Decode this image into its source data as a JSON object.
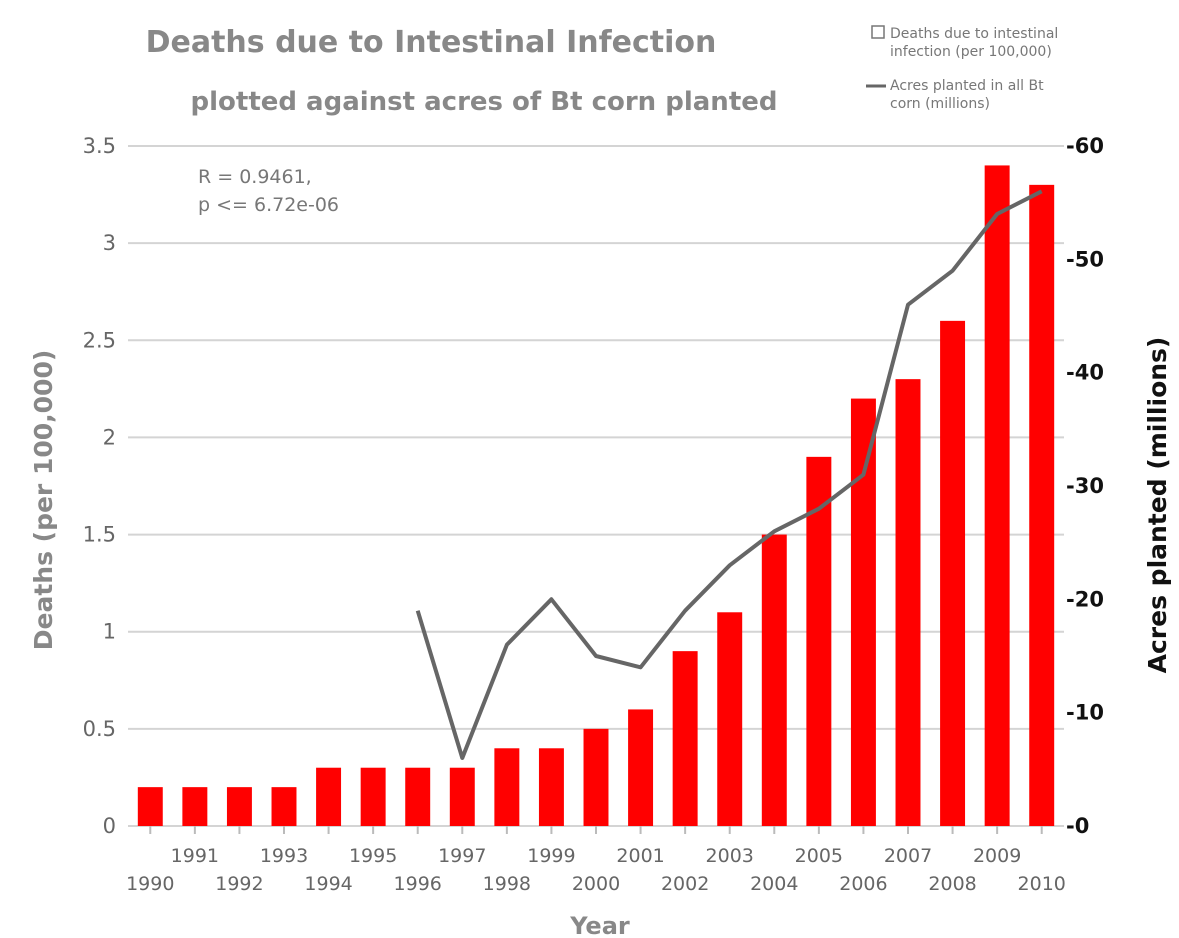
{
  "chart_data": {
    "type": "bar",
    "title": "Deaths due to Intestinal Infection",
    "subtitle": "plotted against acres of Bt corn planted",
    "xlabel": "Year",
    "ylabel": "Deaths (per 100,000)",
    "y2label": "Acres planted (millions)",
    "categories": [
      "1990",
      "1991",
      "1992",
      "1993",
      "1994",
      "1995",
      "1996",
      "1997",
      "1998",
      "1999",
      "2000",
      "2001",
      "2002",
      "2003",
      "2004",
      "2005",
      "2006",
      "2007",
      "2008",
      "2009",
      "2010"
    ],
    "x_tick_labels_upper": [
      "1991",
      "1993",
      "1995",
      "1997",
      "1999",
      "2001",
      "2003",
      "2005",
      "2007",
      "2009"
    ],
    "x_tick_labels_lower": [
      "1990",
      "1992",
      "1994",
      "1996",
      "1998",
      "2000",
      "2002",
      "2004",
      "2006",
      "2008",
      "2010"
    ],
    "ylim": [
      0,
      3.5
    ],
    "yticks": [
      "0",
      "0.5",
      "1",
      "1.5",
      "2",
      "2.5",
      "3",
      "3.5"
    ],
    "y2lim": [
      0,
      60
    ],
    "y2ticks": [
      "0",
      "10",
      "20",
      "30",
      "40",
      "50",
      "60"
    ],
    "grid": true,
    "legend_position": "top-right",
    "series": [
      {
        "name": "Deaths due to intestinal infection (per 100,000)",
        "type": "bar",
        "axis": "left",
        "color": "#ff0000",
        "values": [
          0.2,
          0.2,
          0.2,
          0.2,
          0.3,
          0.3,
          0.3,
          0.3,
          0.4,
          0.4,
          0.5,
          0.6,
          0.9,
          1.1,
          1.5,
          1.9,
          2.2,
          2.3,
          2.6,
          3.4,
          3.3
        ]
      },
      {
        "name": "Acres planted in all Bt corn (millions)",
        "type": "line",
        "axis": "right",
        "color": "#666666",
        "values": [
          null,
          null,
          null,
          null,
          null,
          null,
          19,
          6,
          16,
          20,
          15,
          14,
          19,
          23,
          26,
          28,
          31,
          46,
          49,
          54,
          56
        ]
      }
    ],
    "annotation": [
      "R = 0.9461,",
      "p <= 6.72e-06"
    ]
  }
}
